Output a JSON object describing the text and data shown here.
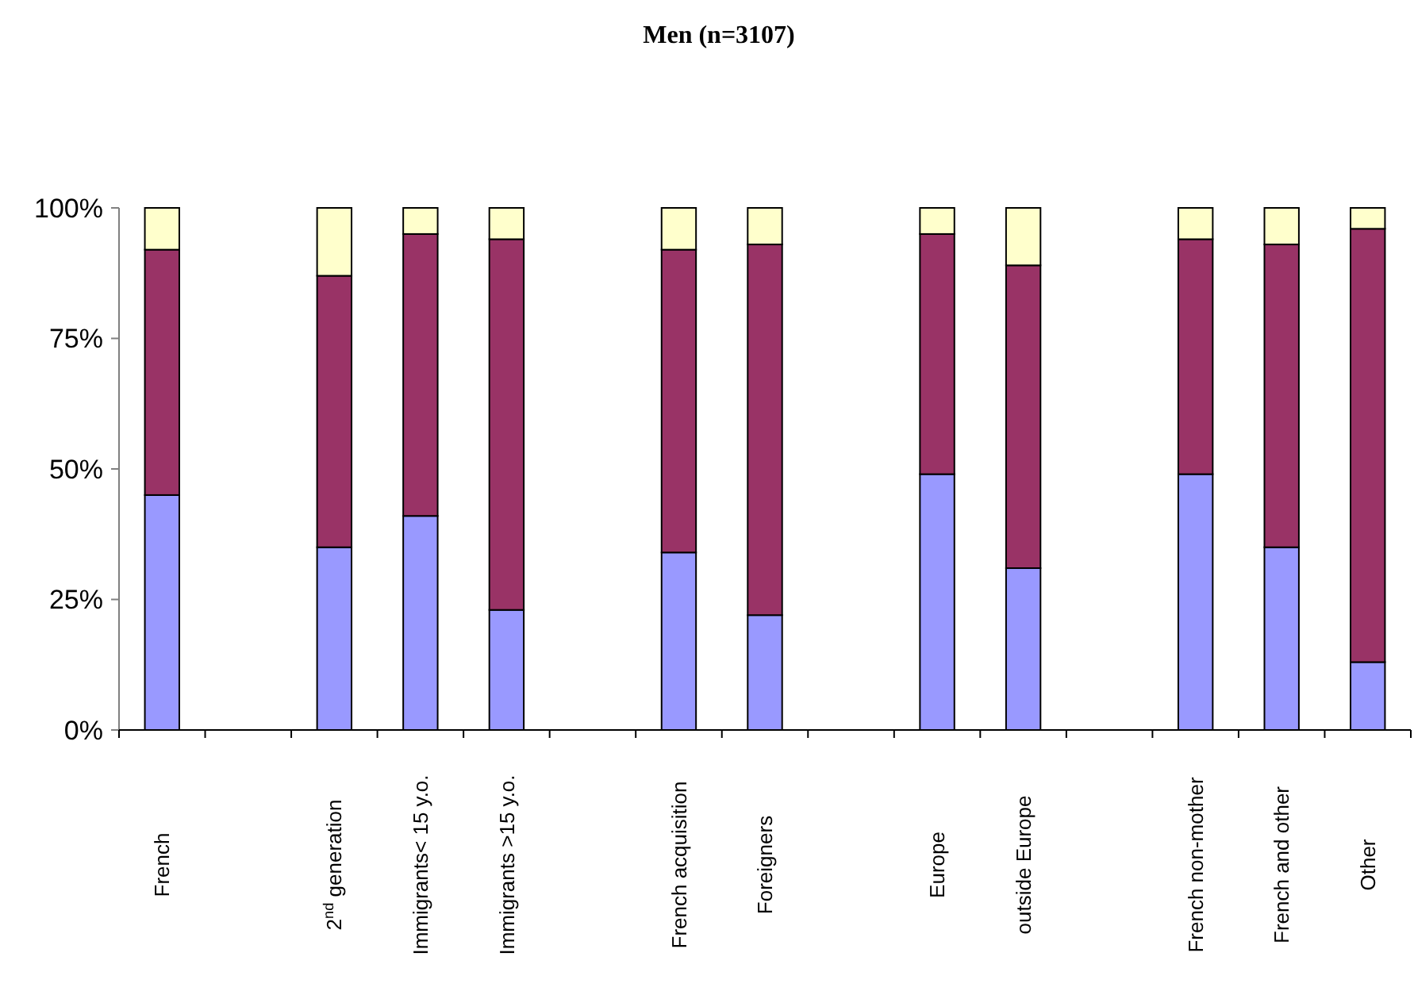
{
  "chart_data": {
    "type": "bar",
    "stacked": true,
    "title": "Men (n=3107)",
    "categories": [
      "French",
      null,
      "2$^{nd}$ generation",
      "Immigrants< 15 y.o.",
      "Immigrants >15 y.o.",
      null,
      "French acquisition",
      "Foreigners",
      null,
      "Europe",
      "outside Europe",
      null,
      "French non-mother",
      "French and other",
      "Other"
    ],
    "series": [
      {
        "color": "#9999ff",
        "values": [
          45,
          null,
          35,
          41,
          23,
          null,
          34,
          22,
          null,
          49,
          31,
          null,
          49,
          35,
          13
        ]
      },
      {
        "color": "#993366",
        "values": [
          47,
          null,
          52,
          54,
          71,
          null,
          58,
          71,
          null,
          46,
          58,
          null,
          45,
          58,
          83
        ]
      },
      {
        "color": "#ffffcc",
        "values": [
          8,
          null,
          13,
          5,
          6,
          null,
          8,
          7,
          null,
          5,
          11,
          null,
          6,
          7,
          4
        ]
      }
    ],
    "ylim": [
      0,
      100
    ],
    "yticks": [
      {
        "value": 0,
        "label": "0%"
      },
      {
        "value": 25,
        "label": "25%"
      },
      {
        "value": 50,
        "label": "50%"
      },
      {
        "value": 75,
        "label": "75%"
      },
      {
        "value": 100,
        "label": "100%"
      }
    ]
  }
}
